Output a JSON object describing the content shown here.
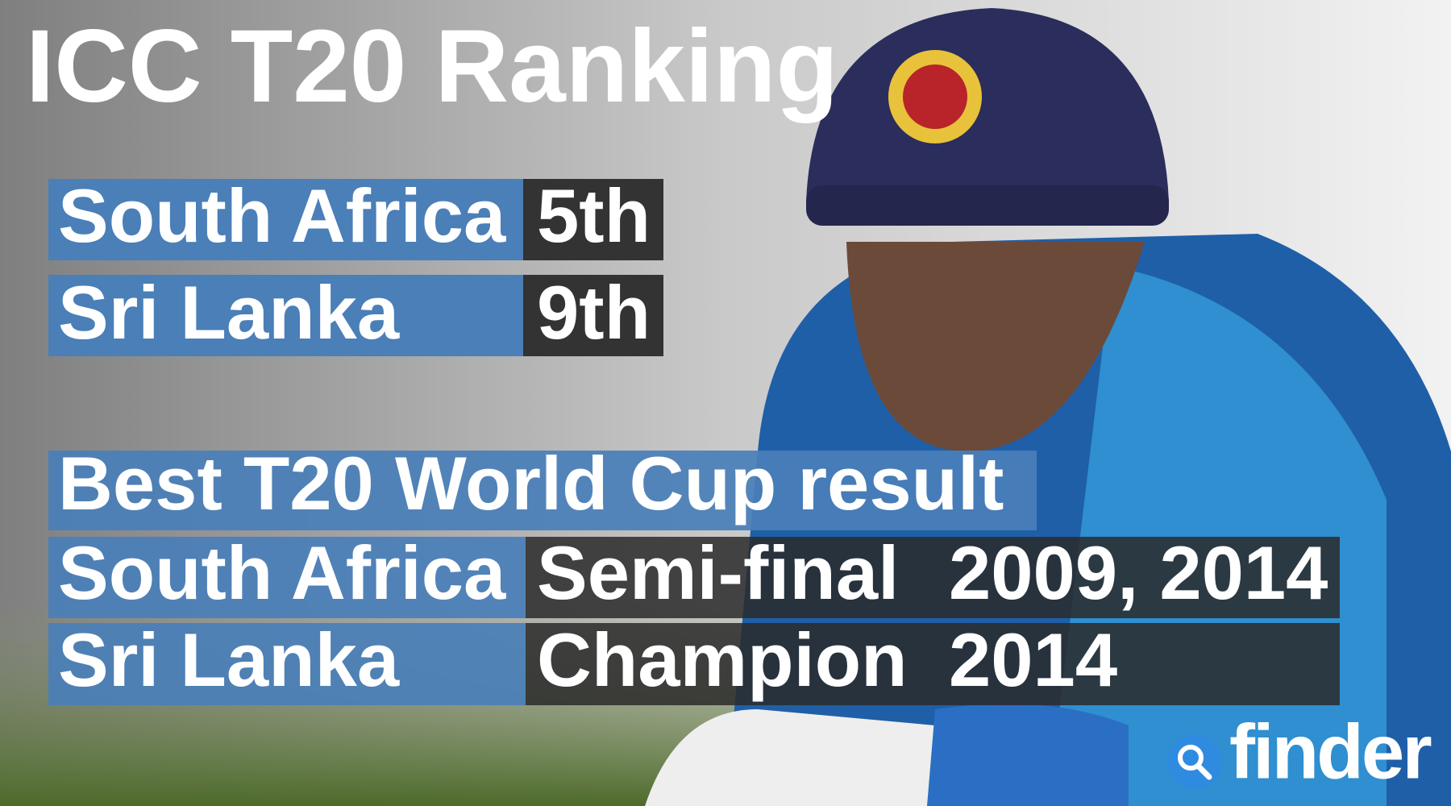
{
  "title": "ICC T20 Ranking",
  "ranking": {
    "rows": [
      [
        "South Africa",
        "5th"
      ],
      [
        "Sri Lanka",
        "9th"
      ]
    ]
  },
  "world_cup": {
    "heading": "Best T20 World Cup result",
    "rows": [
      [
        "South Africa",
        "Semi-final",
        "2009, 2014"
      ],
      [
        "Sri Lanka",
        "Champion",
        "2014"
      ]
    ]
  },
  "logo": "finder"
}
